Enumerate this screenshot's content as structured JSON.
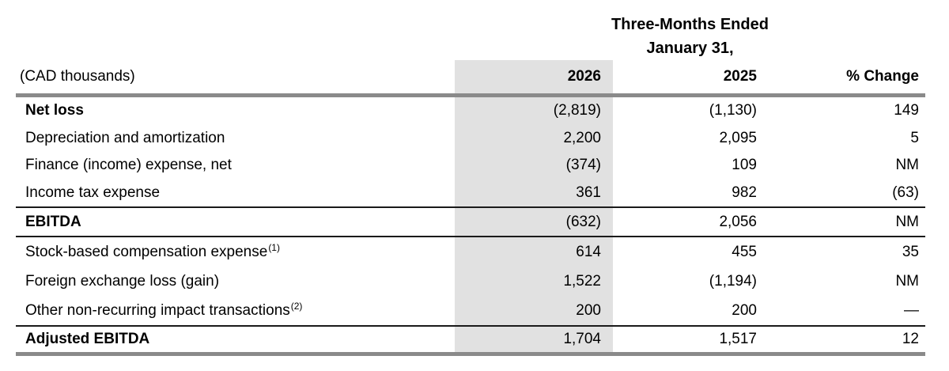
{
  "title": {
    "line1": "Three-Months Ended",
    "line2": "January 31,"
  },
  "header": {
    "units_label": "(CAD thousands)",
    "col_2026": "2026",
    "col_2025": "2025",
    "col_change": "% Change"
  },
  "rows": [
    {
      "label": "Net loss",
      "y2026": "(2,819)",
      "y2025": "(1,130)",
      "change": "149"
    },
    {
      "label": "Depreciation and amortization",
      "y2026": "2,200",
      "y2025": "2,095",
      "change": "5"
    },
    {
      "label": "Finance (income) expense, net",
      "y2026": "(374)",
      "y2025": "109",
      "change": "NM"
    },
    {
      "label": "Income tax expense",
      "y2026": "361",
      "y2025": "982",
      "change": "(63)"
    },
    {
      "label": "EBITDA",
      "y2026": "(632)",
      "y2025": "2,056",
      "change": "NM"
    },
    {
      "label": "Stock-based compensation expense",
      "sup": "(1)",
      "y2026": "614",
      "y2025": "455",
      "change": "35"
    },
    {
      "label": "Foreign exchange loss (gain)",
      "y2026": "1,522",
      "y2025": "(1,194)",
      "change": "NM"
    },
    {
      "label": "Other non-recurring impact transactions",
      "sup": "(2)",
      "y2026": "200",
      "y2025": "200",
      "change": "—"
    },
    {
      "label": "Adjusted EBITDA",
      "y2026": "1,704",
      "y2025": "1,517",
      "change": "12"
    }
  ],
  "colors": {
    "highlight": "#e1e1e1",
    "thick_rule": "#8a8a8a",
    "thin_rule": "#1a1a1a"
  }
}
